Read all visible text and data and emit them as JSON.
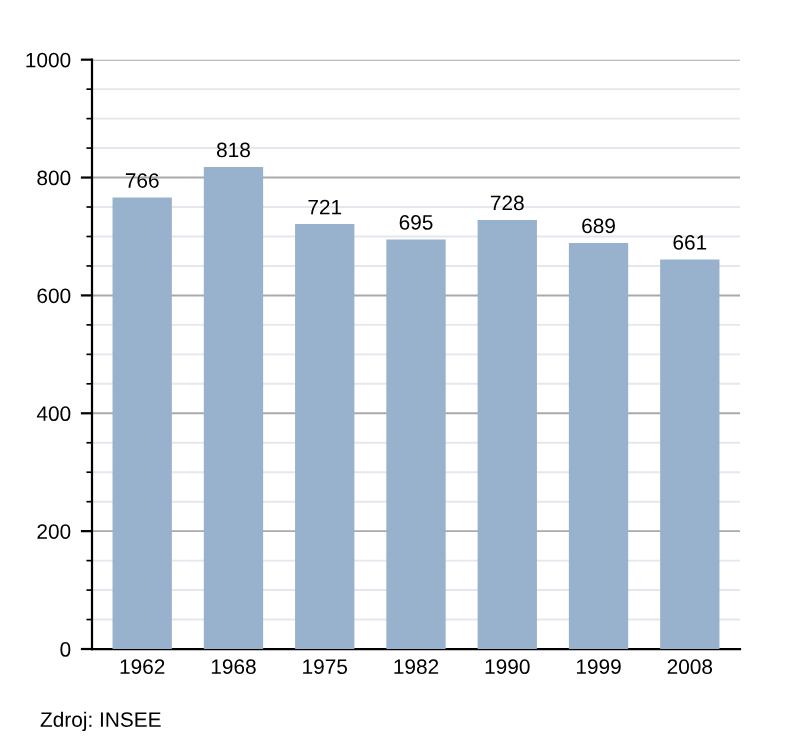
{
  "chart_data": {
    "type": "bar",
    "categories": [
      "1962",
      "1968",
      "1975",
      "1982",
      "1990",
      "1999",
      "2008"
    ],
    "values": [
      766,
      818,
      721,
      695,
      728,
      689,
      661
    ],
    "color": "#98b1cc",
    "ylim": [
      0,
      1000
    ],
    "yticks": [
      0,
      200,
      400,
      600,
      800,
      1000
    ],
    "grid": "y",
    "data_labels": true,
    "annotations": [
      "Zdroj: INSEE"
    ]
  }
}
